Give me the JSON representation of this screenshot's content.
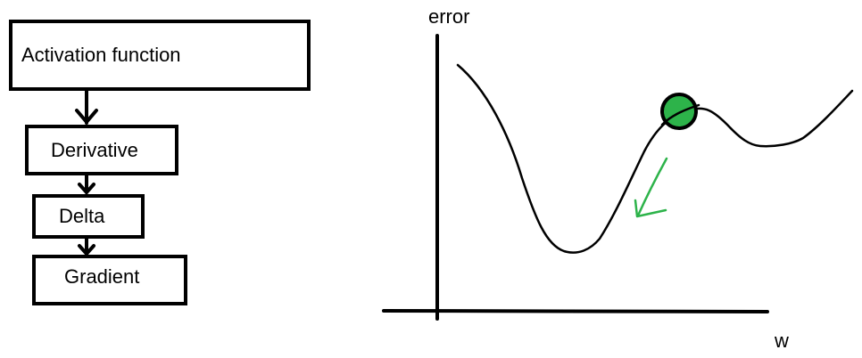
{
  "flowchart": {
    "steps": [
      {
        "label": "Activation function"
      },
      {
        "label": "Derivative"
      },
      {
        "label": "Delta"
      },
      {
        "label": "Gradient"
      }
    ]
  },
  "plot": {
    "y_axis_label": "error",
    "x_axis_label": "w",
    "colors": {
      "curve": "#000000",
      "ball": "#2db34a",
      "arrow": "#2db34a"
    }
  }
}
